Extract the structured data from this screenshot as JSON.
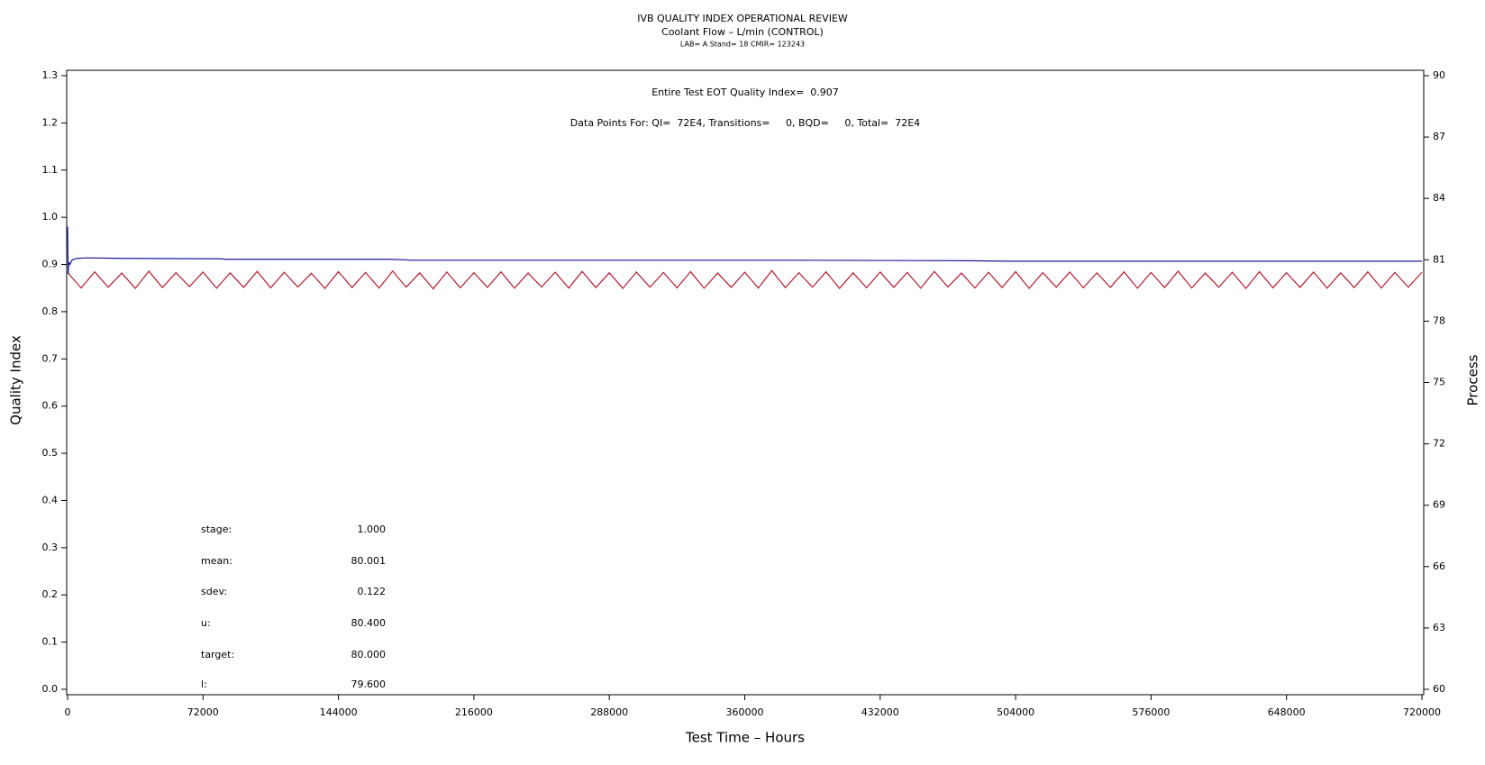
{
  "chart_data": {
    "type": "line",
    "title": "IVB QUALITY INDEX OPERATIONAL REVIEW",
    "subtitle": "Coolant Flow – L/min (CONTROL)",
    "subtitle2": "LAB= A Stand= 18 CMIR= 123243",
    "annotations": [
      "Entire Test EOT Quality Index=  0.907",
      "Data Points For: QI=  72E4, Transitions=     0, BQD=     0, Total=  72E4"
    ],
    "stats": [
      {
        "label": "stage:",
        "value": "1.000"
      },
      {
        "label": "mean:",
        "value": "80.001"
      },
      {
        "label": "sdev:",
        "value": "0.122"
      },
      {
        "label": "u:",
        "value": "80.400"
      },
      {
        "label": "target:",
        "value": "80.000"
      },
      {
        "label": "l:",
        "value": "79.600"
      }
    ],
    "x_label": "Test Time – Hours",
    "y_label": "Quality Index",
    "y2_label": "Process",
    "xlim": [
      0,
      720000
    ],
    "xticks": [
      0,
      72000,
      144000,
      216000,
      288000,
      360000,
      432000,
      504000,
      576000,
      648000,
      720000
    ],
    "ylim": [
      0,
      1.3
    ],
    "yticks": [
      {
        "value": 0,
        "label": "0.0"
      },
      0.1,
      0.2,
      0.3,
      0.4,
      0.5,
      0.6,
      0.7,
      0.8,
      0.9,
      {
        "value": 1,
        "label": "1.0"
      },
      1.1,
      1.2,
      1.3
    ],
    "y2lim": [
      60,
      90
    ],
    "y2ticks": [
      60,
      63,
      66,
      69,
      72,
      75,
      78,
      81,
      84,
      87,
      90
    ],
    "series": [
      {
        "name": "Process",
        "color": "#b01c2e",
        "axis": "y2",
        "x": [
          0,
          7200,
          14400,
          21600,
          28800,
          36000,
          43200,
          50400,
          57600,
          64800,
          72000,
          79200,
          86400,
          93600,
          100800,
          108000,
          115200,
          122400,
          129600,
          136800,
          144000,
          151200,
          158400,
          165600,
          172800,
          180000,
          187200,
          194400,
          201600,
          208800,
          216000,
          223200,
          230400,
          237600,
          244800,
          252000,
          259200,
          266400,
          273600,
          280800,
          288000,
          295200,
          302400,
          309600,
          316800,
          324000,
          331200,
          338400,
          345600,
          352800,
          360000,
          367200,
          374400,
          381600,
          388800,
          396000,
          403200,
          410400,
          417600,
          424800,
          432000,
          439200,
          446400,
          453600,
          460800,
          468000,
          475200,
          482400,
          489600,
          496800,
          504000,
          511200,
          518400,
          525600,
          532800,
          540000,
          547200,
          554400,
          561600,
          568800,
          576000,
          583200,
          590400,
          597600,
          604800,
          612000,
          619200,
          626400,
          633600,
          640800,
          648000,
          655200,
          662400,
          669600,
          676800,
          684000,
          691200,
          698400,
          705600,
          712800,
          720000
        ],
        "values": [
          80.38,
          79.62,
          80.41,
          79.66,
          80.35,
          79.6,
          80.44,
          79.64,
          80.37,
          79.69,
          80.4,
          79.61,
          80.36,
          79.65,
          80.43,
          79.63,
          80.39,
          79.67,
          80.34,
          79.6,
          80.42,
          79.64,
          80.38,
          79.62,
          80.45,
          79.66,
          80.36,
          79.58,
          80.4,
          79.63,
          80.37,
          79.65,
          80.41,
          79.61,
          80.35,
          79.67,
          80.39,
          79.62,
          80.43,
          79.64,
          80.36,
          79.6,
          80.4,
          79.66,
          80.38,
          79.63,
          80.42,
          79.61,
          80.35,
          79.65,
          80.39,
          79.62,
          80.47,
          79.64,
          80.37,
          79.66,
          80.41,
          79.6,
          80.36,
          79.63,
          80.4,
          79.65,
          80.38,
          79.61,
          80.43,
          79.67,
          80.35,
          79.62,
          80.39,
          79.64,
          80.42,
          79.6,
          80.37,
          79.66,
          80.4,
          79.63,
          80.36,
          79.65,
          80.41,
          79.61,
          80.38,
          79.64,
          80.44,
          79.62,
          80.35,
          79.66,
          80.39,
          79.6,
          80.42,
          79.63,
          80.37,
          79.65,
          80.4,
          79.61,
          80.36,
          79.64,
          80.41,
          79.62,
          80.38,
          79.66,
          80.39
        ]
      },
      {
        "name": "Quality Index",
        "color": "#1a1a9a",
        "x": [
          0,
          300,
          600,
          1200,
          2500,
          5000,
          10000,
          30000,
          82000,
          84000,
          170000,
          180000,
          182000,
          390000,
          480000,
          500000,
          510000,
          720000
        ],
        "values": [
          0.98,
          0.88,
          0.905,
          0.9,
          0.91,
          0.913,
          0.914,
          0.913,
          0.912,
          0.911,
          0.911,
          0.91,
          0.909,
          0.909,
          0.908,
          0.907,
          0.907,
          0.907
        ]
      }
    ]
  }
}
